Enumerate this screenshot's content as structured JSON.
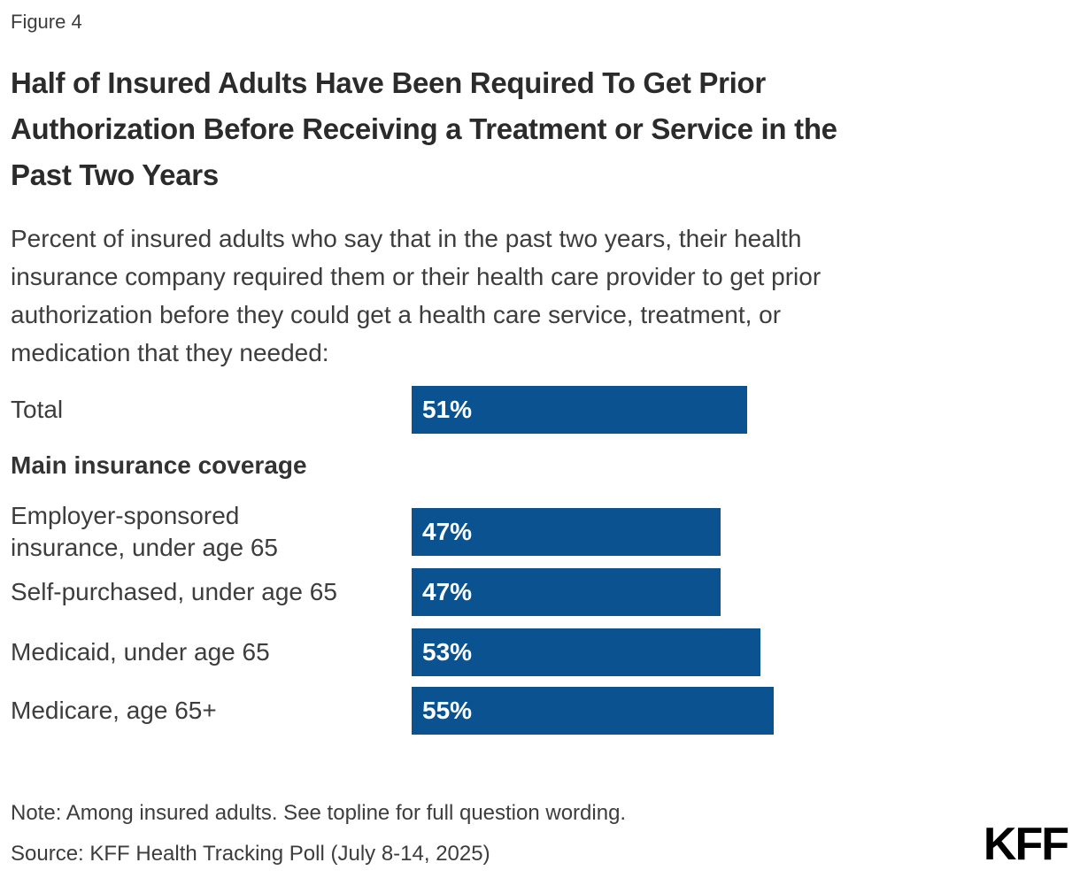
{
  "figure_label": "Figure 4",
  "title": "Half of Insured Adults Have Been Required To Get Prior\nAuthorization Before Receiving a Treatment or Service in the\nPast Two Years",
  "subtitle": "Percent of insured adults who say that in the past two years, their health\ninsurance company required them or their health care provider to get prior\nauthorization before they could get a health care service, treatment, or\nmedication that they needed:",
  "chart": {
    "section_header": "Main insurance coverage",
    "rows": [
      {
        "label": "Total",
        "value": 51,
        "value_label": "51%"
      },
      {
        "label": "Employer-sponsored\ninsurance, under age 65",
        "value": 47,
        "value_label": "47%"
      },
      {
        "label": "Self-purchased, under age 65",
        "value": 47,
        "value_label": "47%"
      },
      {
        "label": "Medicaid, under age 65",
        "value": 53,
        "value_label": "53%"
      },
      {
        "label": "Medicare, age 65+",
        "value": 55,
        "value_label": "55%"
      }
    ]
  },
  "chart_data": {
    "type": "bar",
    "orientation": "horizontal",
    "title": "Half of Insured Adults Have Been Required To Get Prior Authorization Before Receiving a Treatment or Service in the Past Two Years",
    "subtitle": "Percent of insured adults who say that in the past two years, their health insurance company required them or their health care provider to get prior authorization before they could get a health care service, treatment, or medication that they needed:",
    "categories": [
      "Total",
      "Employer-sponsored insurance, under age 65",
      "Self-purchased, under age 65",
      "Medicaid, under age 65",
      "Medicare, age 65+"
    ],
    "values": [
      51,
      47,
      47,
      53,
      55
    ],
    "value_labels": [
      "51%",
      "47%",
      "47%",
      "53%",
      "55%"
    ],
    "category_group_label": "Main insurance coverage",
    "category_group_members": [
      "Employer-sponsored insurance, under age 65",
      "Self-purchased, under age 65",
      "Medicaid, under age 65",
      "Medicare, age 65+"
    ],
    "unit": "%",
    "xlim": [
      0,
      100
    ],
    "grid": false,
    "legend": false,
    "value_label_position": "inside-left",
    "bar_color": "#0A5290"
  },
  "footer": {
    "note": "Note: Among insured adults. See topline for full question wording.",
    "source": "Source: KFF Health Tracking Poll (July 8-14, 2025)",
    "logo": "KFF"
  },
  "colors": {
    "bar": "#0A5290",
    "title_text": "#2b2b2b",
    "body_text": "#3d3d3d",
    "background": "#ffffff",
    "logo": "#000000"
  }
}
